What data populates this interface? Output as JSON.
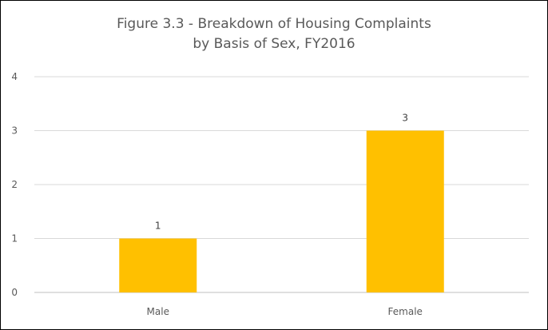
{
  "chart_data": {
    "type": "bar",
    "title_line1": "Figure 3.3 - Breakdown of Housing Complaints",
    "title_line2": "by Basis of Sex, FY2016",
    "categories": [
      "Male",
      "Female"
    ],
    "values": [
      1,
      3
    ],
    "data_labels": [
      "1",
      "3"
    ],
    "y_ticks": [
      "0",
      "1",
      "2",
      "3",
      "4"
    ],
    "ylim": [
      0,
      4
    ],
    "xlabel": "",
    "ylabel": "",
    "grid": true,
    "legend": "none",
    "bar_color": "#FFC000",
    "grid_color": "#D9D9D9"
  }
}
